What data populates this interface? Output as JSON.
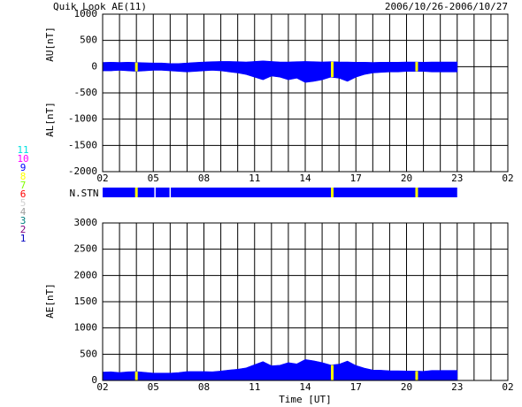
{
  "chart_data": [
    {
      "type": "area",
      "title": "Quik Look AE(11)",
      "subtitle": "2006/10/26-2006/10/27",
      "y_labels": [
        "AU[nT]",
        "AL[nT]"
      ],
      "x": [
        2,
        2.5,
        3,
        3.5,
        4,
        4.5,
        5,
        5.5,
        6,
        6.5,
        7,
        7.5,
        8,
        8.5,
        9,
        9.5,
        10,
        10.5,
        11,
        11.5,
        12,
        12.5,
        13,
        13.5,
        14,
        14.5,
        15,
        15.5,
        16,
        16.5,
        17,
        17.5,
        18,
        18.5,
        19,
        19.5,
        20,
        20.5,
        21,
        21.5,
        22,
        22.5,
        23
      ],
      "series": [
        {
          "name": "AU",
          "color": "#0000ff",
          "values": [
            80,
            85,
            80,
            85,
            80,
            75,
            70,
            70,
            60,
            60,
            70,
            80,
            90,
            95,
            100,
            100,
            95,
            90,
            100,
            110,
            100,
            90,
            90,
            95,
            100,
            95,
            90,
            95,
            90,
            90,
            85,
            85,
            80,
            85,
            85,
            85,
            90,
            90,
            85,
            90,
            90,
            90,
            90
          ]
        },
        {
          "name": "AL",
          "color": "#0000ff",
          "values": [
            -80,
            -80,
            -70,
            -80,
            -90,
            -80,
            -70,
            -70,
            -80,
            -90,
            -100,
            -90,
            -80,
            -70,
            -80,
            -100,
            -120,
            -150,
            -200,
            -250,
            -180,
            -200,
            -250,
            -220,
            -300,
            -280,
            -250,
            -200,
            -220,
            -280,
            -200,
            -150,
            -120,
            -110,
            -100,
            -100,
            -90,
            -90,
            -90,
            -100,
            -100,
            -100,
            -100
          ]
        }
      ],
      "xlim": [
        2,
        26
      ],
      "xticks": [
        {
          "value": 2,
          "label": "02"
        },
        {
          "value": 5,
          "label": "05"
        },
        {
          "value": 8,
          "label": "08"
        },
        11,
        14,
        17,
        20,
        23,
        {
          "value": 26,
          "label": "02"
        }
      ],
      "xgrid": [
        2,
        3,
        4,
        5,
        6,
        7,
        8,
        9,
        10,
        11,
        12,
        13,
        14,
        15,
        16,
        17,
        18,
        19,
        20,
        21,
        22,
        23,
        24,
        25,
        26
      ],
      "ylim": [
        -2000,
        1000
      ],
      "yticks": [
        -2000,
        -1500,
        -1000,
        -500,
        0,
        500,
        1000
      ],
      "grid": true
    },
    {
      "type": "area",
      "y_labels": [
        "AE[nT]"
      ],
      "xlabel": "Time [UT]",
      "x": [
        2,
        2.5,
        3,
        3.5,
        4,
        4.5,
        5,
        5.5,
        6,
        6.5,
        7,
        7.5,
        8,
        8.5,
        9,
        9.5,
        10,
        10.5,
        11,
        11.5,
        12,
        12.5,
        13,
        13.5,
        14,
        14.5,
        15,
        15.5,
        16,
        16.5,
        17,
        17.5,
        18,
        18.5,
        19,
        19.5,
        20,
        20.5,
        21,
        21.5,
        22,
        22.5,
        23
      ],
      "series": [
        {
          "name": "AE",
          "color": "#0000ff",
          "values": [
            160,
            165,
            150,
            165,
            170,
            155,
            140,
            140,
            140,
            150,
            170,
            170,
            170,
            165,
            180,
            200,
            215,
            240,
            300,
            360,
            280,
            290,
            340,
            315,
            400,
            375,
            340,
            295,
            310,
            370,
            285,
            235,
            200,
            195,
            185,
            185,
            180,
            180,
            175,
            190,
            190,
            190,
            190
          ]
        }
      ],
      "xlim": [
        2,
        26
      ],
      "xticks": [
        {
          "value": 2,
          "label": "02"
        },
        {
          "value": 5,
          "label": "05"
        },
        {
          "value": 8,
          "label": "08"
        },
        11,
        14,
        17,
        20,
        23,
        {
          "value": 26,
          "label": "02"
        }
      ],
      "xgrid": [
        2,
        3,
        4,
        5,
        6,
        7,
        8,
        9,
        10,
        11,
        12,
        13,
        14,
        15,
        16,
        17,
        18,
        19,
        20,
        21,
        22,
        23,
        24,
        25,
        26
      ],
      "ylim": [
        0,
        3000
      ],
      "yticks": [
        0,
        500,
        1000,
        1500,
        2000,
        2500,
        3000
      ],
      "grid": true
    }
  ],
  "stations": {
    "label": "N.STN",
    "color": "#0000ff",
    "markers": [
      4.0,
      15.6,
      20.6
    ],
    "marker_color": "#ffff00",
    "gaps": [
      5.1,
      6.0
    ]
  },
  "station_legend": [
    {
      "label": "11",
      "color": "#00e0e0"
    },
    {
      "label": "10",
      "color": "#ff00ff"
    },
    {
      "label": "9",
      "color": "#0000ff"
    },
    {
      "label": "8",
      "color": "#ffff00"
    },
    {
      "label": "7",
      "color": "#80ff00"
    },
    {
      "label": "6",
      "color": "#ff0000"
    },
    {
      "label": "5",
      "color": "#d0d0d0"
    },
    {
      "label": "4",
      "color": "#a0a0a0"
    },
    {
      "label": "3",
      "color": "#008080"
    },
    {
      "label": "2",
      "color": "#800080"
    },
    {
      "label": "1",
      "color": "#0000c0"
    }
  ]
}
